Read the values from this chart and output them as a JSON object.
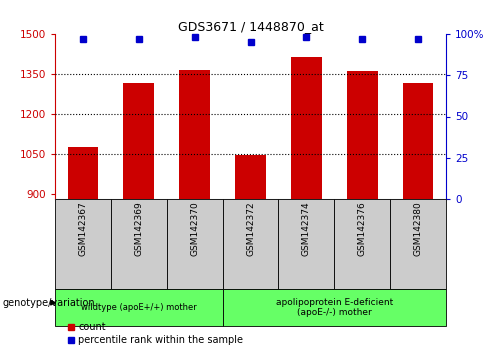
{
  "title": "GDS3671 / 1448870_at",
  "samples": [
    "GSM142367",
    "GSM142369",
    "GSM142370",
    "GSM142372",
    "GSM142374",
    "GSM142376",
    "GSM142380"
  ],
  "counts": [
    1075,
    1315,
    1365,
    1047,
    1415,
    1360,
    1315
  ],
  "percentile_ranks": [
    97,
    97,
    98,
    95,
    98,
    97,
    97
  ],
  "ylim_left": [
    880,
    1500
  ],
  "ylim_right": [
    0,
    100
  ],
  "yticks_left": [
    900,
    1050,
    1200,
    1350,
    1500
  ],
  "yticks_right": [
    0,
    25,
    50,
    75,
    100
  ],
  "bar_color": "#cc0000",
  "dot_color": "#0000cc",
  "grid_color": "#000000",
  "left_tick_color": "#cc0000",
  "right_tick_color": "#0000cc",
  "group1_label": "wildtype (apoE+/+) mother",
  "group2_label": "apolipoprotein E-deficient\n(apoE-/-) mother",
  "group1_indices": [
    0,
    1,
    2
  ],
  "group2_indices": [
    3,
    4,
    5,
    6
  ],
  "group_bg_color": "#66ff66",
  "sample_bg_color": "#cccccc",
  "legend_count_label": "count",
  "legend_pct_label": "percentile rank within the sample",
  "genotype_label": "genotype/variation"
}
